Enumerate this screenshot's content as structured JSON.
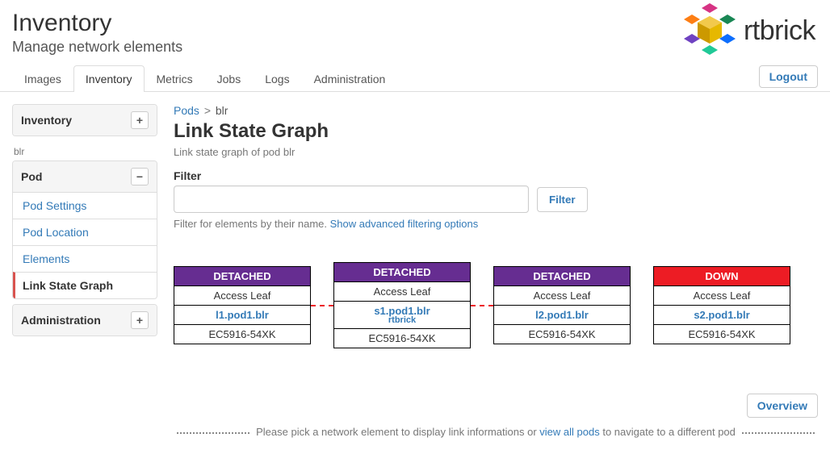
{
  "header": {
    "title": "Inventory",
    "subtitle": "Manage network elements",
    "logo_text": "rtbrick",
    "logout": "Logout"
  },
  "tabs": [
    "Images",
    "Inventory",
    "Metrics",
    "Jobs",
    "Logs",
    "Administration"
  ],
  "active_tab_index": 1,
  "sidebar": {
    "top_panel": "Inventory",
    "context_label": "blr",
    "pod_panel": "Pod",
    "pod_items": [
      "Pod Settings",
      "Pod Location",
      "Elements",
      "Link State Graph"
    ],
    "pod_active_index": 3,
    "admin_panel": "Administration"
  },
  "breadcrumb": {
    "root": "Pods",
    "current": "blr"
  },
  "page": {
    "title": "Link State Graph",
    "description": "Link state graph of pod blr",
    "filter_label": "Filter",
    "filter_button": "Filter",
    "filter_help_text": "Filter for elements by their name. ",
    "filter_help_link": "Show advanced filtering options"
  },
  "graph": {
    "nodes": [
      {
        "status": "DETACHED",
        "status_class": "detached",
        "role": "Access Leaf",
        "name": "l1.pod1.blr",
        "alias": "",
        "hw": "EC5916-54XK"
      },
      {
        "status": "DETACHED",
        "status_class": "detached",
        "role": "Access Leaf",
        "name": "s1.pod1.blr",
        "alias": "rtbrick",
        "hw": "EC5916-54XK"
      },
      {
        "status": "DETACHED",
        "status_class": "detached",
        "role": "Access Leaf",
        "name": "l2.pod1.blr",
        "alias": "",
        "hw": "EC5916-54XK"
      },
      {
        "status": "DOWN",
        "status_class": "down",
        "role": "Access Leaf",
        "name": "s2.pod1.blr",
        "alias": "",
        "hw": "EC5916-54XK"
      }
    ],
    "connections": [
      true,
      true,
      false
    ]
  },
  "overview_button": "Overview",
  "footer": {
    "pre": "Please pick a network element to display link informations or ",
    "link": "view all pods",
    "post": " to navigate to a different pod"
  },
  "colors": {
    "link_blue": "#337ab7",
    "detached_purple": "#662d91",
    "down_red": "#ed1c24",
    "border": "#ddd"
  }
}
